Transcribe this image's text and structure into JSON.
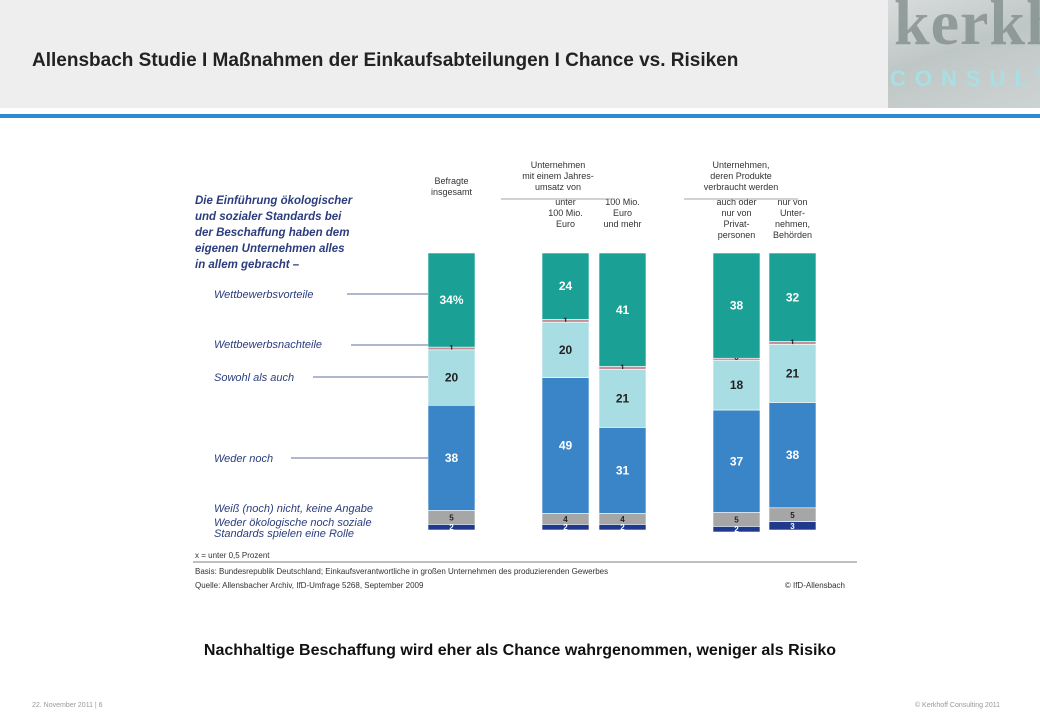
{
  "header": {
    "title": "Allensbach Studie I Maßnahmen der Einkaufsabteilungen I Chance vs. Risiken",
    "logo_text": "kerkhoff",
    "logo_sub": "CONSULTING"
  },
  "colors": {
    "rule": "#2a8ad6",
    "wettbewerbsvorteile": "#1aa095",
    "wettbewerbsnachteile": "#c88f98",
    "sowohl": "#a7dde3",
    "weder": "#3a85c8",
    "weiss_nicht": "#a6a6a6",
    "keine_rolle": "#1f3a8c",
    "question": "#2b3d7e"
  },
  "chart_data": {
    "type": "bar",
    "stacked": true,
    "question_lines": [
      "Die Einführung ökologischer",
      "und sozialer Standards bei",
      "der Beschaffung haben dem",
      "eigenen Unternehmen alles",
      "in allem gebracht –"
    ],
    "group_headers": [
      [
        "Unternehmen",
        "mit einem Jahres-",
        "umsatz von"
      ],
      [
        "Unternehmen,",
        "deren Produkte",
        "verbraucht werden"
      ]
    ],
    "categories": [
      [
        "Befragte",
        "insgesamt"
      ],
      [
        "unter",
        "100 Mio.",
        "Euro"
      ],
      [
        "100 Mio.",
        "Euro",
        "und mehr"
      ],
      [
        "auch oder",
        "nur von",
        "Privat-",
        "personen"
      ],
      [
        "nur von",
        "Unter-",
        "nehmen,",
        "Behörden"
      ]
    ],
    "series": [
      {
        "name": "Wettbewerbsvorteile",
        "values": [
          34,
          24,
          41,
          38,
          32
        ],
        "labels": [
          "34%",
          "24",
          "41",
          "38",
          "32"
        ]
      },
      {
        "name": "Wettbewerbsnachteile",
        "values": [
          1,
          1,
          1,
          0.3,
          1
        ],
        "labels": [
          "1",
          "1",
          "1",
          "x",
          "1"
        ]
      },
      {
        "name": "Sowohl als auch",
        "values": [
          20,
          20,
          21,
          18,
          21
        ],
        "labels": [
          "20",
          "20",
          "21",
          "18",
          "21"
        ]
      },
      {
        "name": "Weder noch",
        "values": [
          38,
          49,
          31,
          37,
          38
        ],
        "labels": [
          "38",
          "49",
          "31",
          "37",
          "38"
        ]
      },
      {
        "name": "Weiß (noch) nicht, keine Angabe",
        "values": [
          5,
          4,
          4,
          5,
          5
        ],
        "labels": [
          "5",
          "4",
          "4",
          "5",
          "5"
        ]
      },
      {
        "name": "Weder ökologische noch soziale Standards spielen eine Rolle",
        "values": [
          2,
          2,
          2,
          2,
          3
        ],
        "labels": [
          "2",
          "2",
          "2",
          "2",
          "3"
        ]
      }
    ],
    "legend_labels": [
      [
        "Wettbewerbsvorteile"
      ],
      [
        "Wettbewerbsnachteile"
      ],
      [
        "Sowohl als auch"
      ],
      [
        "Weder noch"
      ],
      [
        "Weiß (noch) nicht, keine Angabe"
      ],
      [
        "Weder ökologische noch soziale",
        "Standards spielen eine Rolle"
      ]
    ],
    "note": "x = unter 0,5 Prozent",
    "basis": "Basis: Bundesrepublik Deutschland; Einkaufsverantwortliche in großen Unternehmen des produzierenden Gewerbes",
    "source": "Quelle: Allensbacher Archiv, IfD-Umfrage 5268, September 2009",
    "copyright": "© IfD-Allensbach",
    "ylim": [
      0,
      100
    ]
  },
  "caption": "Nachhaltige Beschaffung wird eher als Chance wahrgenommen, weniger als Risiko",
  "footer": {
    "left": "22. November 2011 | 6",
    "right": "© Kerkhoff Consulting 2011"
  }
}
